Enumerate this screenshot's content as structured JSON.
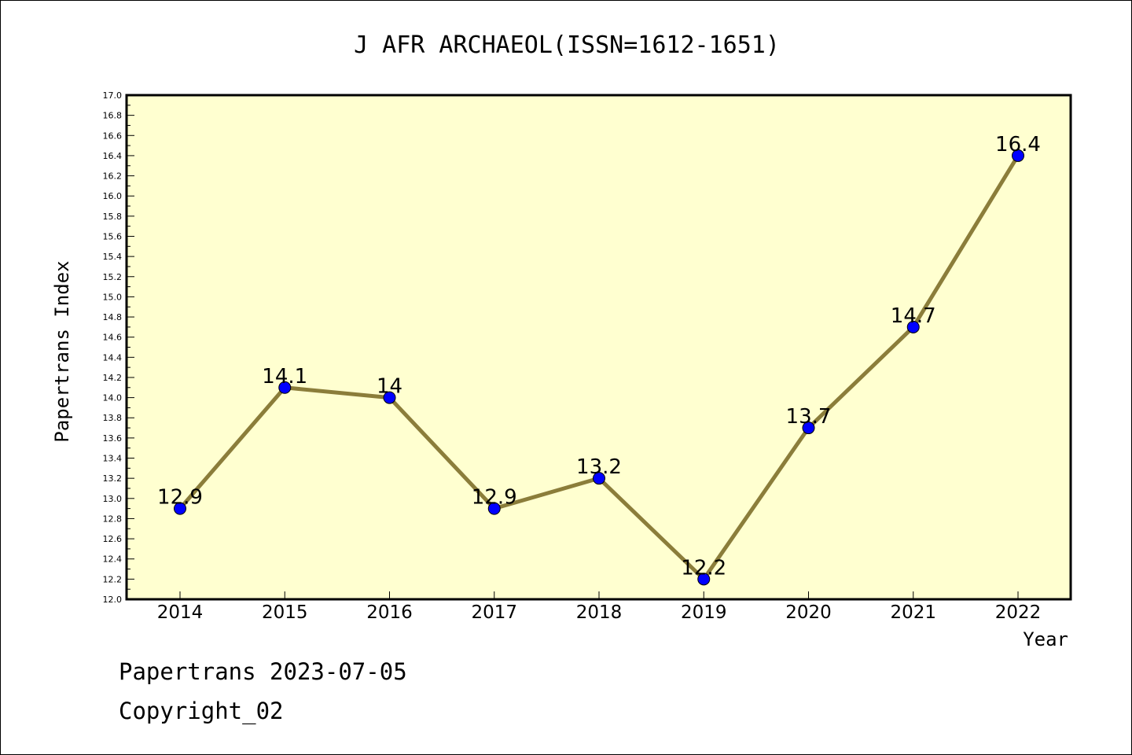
{
  "chart_data": {
    "type": "line",
    "title": "J AFR ARCHAEOL(ISSN=1612-1651)",
    "xlabel": "Year",
    "ylabel": "Papertrans Index",
    "categories": [
      "2014",
      "2015",
      "2016",
      "2017",
      "2018",
      "2019",
      "2020",
      "2021",
      "2022"
    ],
    "series": [
      {
        "values": [
          12.9,
          14.1,
          14.0,
          12.9,
          13.2,
          12.2,
          13.7,
          14.7,
          16.4
        ],
        "labels": [
          "12.9",
          "14.1",
          "14",
          "12.9",
          "13.2",
          "12.2",
          "13.7",
          "14.7",
          "16.4"
        ]
      }
    ],
    "ylim": [
      12.0,
      17.0
    ],
    "ytick_step": 0.2,
    "yticks": [
      "12.0",
      "12.2",
      "12.4",
      "12.6",
      "12.8",
      "13.0",
      "13.2",
      "13.4",
      "13.6",
      "13.8",
      "14.0",
      "14.2",
      "14.4",
      "14.6",
      "14.8",
      "15.0",
      "15.2",
      "15.4",
      "15.6",
      "15.8",
      "16.0",
      "16.2",
      "16.4",
      "16.6",
      "16.8",
      "17.0"
    ],
    "grid": false,
    "legend": "none",
    "colors": {
      "plot_background": "#ffffd0",
      "line": "#8b7d3a",
      "marker": "#0000ff"
    }
  },
  "footer": {
    "line1": "Papertrans 2023-07-05",
    "line2": "Copyright_02"
  }
}
